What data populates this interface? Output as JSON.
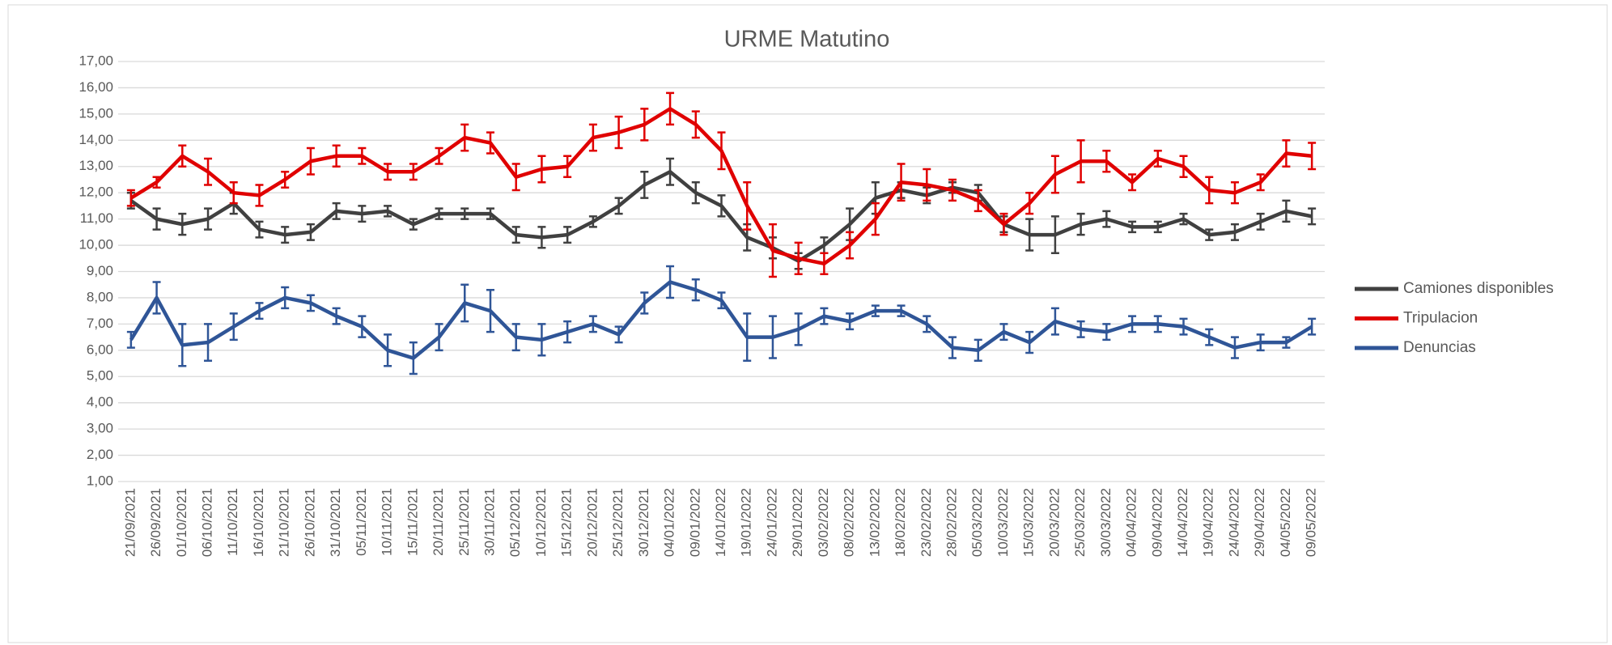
{
  "chart_data": {
    "type": "line",
    "title": "URME Matutino",
    "categories": [
      "21/09/2021",
      "26/09/2021",
      "01/10/2021",
      "06/10/2021",
      "11/10/2021",
      "16/10/2021",
      "21/10/2021",
      "26/10/2021",
      "31/10/2021",
      "05/11/2021",
      "10/11/2021",
      "15/11/2021",
      "20/11/2021",
      "25/11/2021",
      "30/11/2021",
      "05/12/2021",
      "10/12/2021",
      "15/12/2021",
      "20/12/2021",
      "25/12/2021",
      "30/12/2021",
      "04/01/2022",
      "09/01/2022",
      "14/01/2022",
      "19/01/2022",
      "24/01/2022",
      "29/01/2022",
      "03/02/2022",
      "08/02/2022",
      "13/02/2022",
      "18/02/2022",
      "23/02/2022",
      "28/02/2022",
      "05/03/2022",
      "10/03/2022",
      "15/03/2022",
      "20/03/2022",
      "25/03/2022",
      "30/03/2022",
      "04/04/2022",
      "09/04/2022",
      "14/04/2022",
      "19/04/2022",
      "24/04/2022",
      "29/04/2022",
      "04/05/2022",
      "09/05/2022"
    ],
    "series": [
      {
        "name": "Camiones disponibles",
        "color": "#404040",
        "values": [
          11.7,
          11.0,
          10.8,
          11.0,
          11.6,
          10.6,
          10.4,
          10.5,
          11.3,
          11.2,
          11.3,
          10.8,
          11.2,
          11.2,
          11.2,
          10.4,
          10.3,
          10.4,
          10.9,
          11.5,
          12.3,
          12.8,
          12.0,
          11.5,
          10.3,
          9.9,
          9.4,
          10.0,
          10.8,
          11.8,
          12.1,
          11.9,
          12.2,
          12.0,
          10.8,
          10.4,
          10.4,
          10.8,
          11.0,
          10.7,
          10.7,
          11.0,
          10.4,
          10.5,
          10.9,
          11.3,
          11.1
        ],
        "errors": [
          0.3,
          0.4,
          0.4,
          0.4,
          0.4,
          0.3,
          0.3,
          0.3,
          0.3,
          0.3,
          0.2,
          0.2,
          0.2,
          0.2,
          0.2,
          0.3,
          0.4,
          0.3,
          0.2,
          0.3,
          0.5,
          0.5,
          0.4,
          0.4,
          0.5,
          0.4,
          0.3,
          0.3,
          0.6,
          0.6,
          0.3,
          0.3,
          0.2,
          0.3,
          0.3,
          0.6,
          0.7,
          0.4,
          0.3,
          0.2,
          0.2,
          0.2,
          0.2,
          0.3,
          0.3,
          0.4,
          0.3
        ]
      },
      {
        "name": "Tripulacion",
        "color": "#e00000",
        "values": [
          11.8,
          12.4,
          13.4,
          12.8,
          12.0,
          11.9,
          12.5,
          13.2,
          13.4,
          13.4,
          12.8,
          12.8,
          13.4,
          14.1,
          13.9,
          12.6,
          12.9,
          13.0,
          14.1,
          14.3,
          14.6,
          15.2,
          14.6,
          13.6,
          11.5,
          9.8,
          9.5,
          9.3,
          10.0,
          11.0,
          12.4,
          12.3,
          12.1,
          11.7,
          10.8,
          11.6,
          12.7,
          13.2,
          13.2,
          12.4,
          13.3,
          13.0,
          12.1,
          12.0,
          12.4,
          13.5,
          13.4
        ],
        "errors": [
          0.3,
          0.2,
          0.4,
          0.5,
          0.4,
          0.4,
          0.3,
          0.5,
          0.4,
          0.3,
          0.3,
          0.3,
          0.3,
          0.5,
          0.4,
          0.5,
          0.5,
          0.4,
          0.5,
          0.6,
          0.6,
          0.6,
          0.5,
          0.7,
          0.9,
          1.0,
          0.6,
          0.4,
          0.5,
          0.6,
          0.7,
          0.6,
          0.4,
          0.4,
          0.4,
          0.4,
          0.7,
          0.8,
          0.4,
          0.3,
          0.3,
          0.4,
          0.5,
          0.4,
          0.3,
          0.5,
          0.5
        ]
      },
      {
        "name": "Denuncias",
        "color": "#2f5597",
        "values": [
          6.4,
          8.0,
          6.2,
          6.3,
          6.9,
          7.5,
          8.0,
          7.8,
          7.3,
          6.9,
          6.0,
          5.7,
          6.5,
          7.8,
          7.5,
          6.5,
          6.4,
          6.7,
          7.0,
          6.6,
          7.8,
          8.6,
          8.3,
          7.9,
          6.5,
          6.5,
          6.8,
          7.3,
          7.1,
          7.5,
          7.5,
          7.0,
          6.1,
          6.0,
          6.7,
          6.3,
          7.1,
          6.8,
          6.7,
          7.0,
          7.0,
          6.9,
          6.5,
          6.1,
          6.3,
          6.3,
          6.9
        ],
        "errors": [
          0.3,
          0.6,
          0.8,
          0.7,
          0.5,
          0.3,
          0.4,
          0.3,
          0.3,
          0.4,
          0.6,
          0.6,
          0.5,
          0.7,
          0.8,
          0.5,
          0.6,
          0.4,
          0.3,
          0.3,
          0.4,
          0.6,
          0.4,
          0.3,
          0.9,
          0.8,
          0.6,
          0.3,
          0.3,
          0.2,
          0.2,
          0.3,
          0.4,
          0.4,
          0.3,
          0.4,
          0.5,
          0.3,
          0.3,
          0.3,
          0.3,
          0.3,
          0.3,
          0.4,
          0.3,
          0.2,
          0.3
        ]
      }
    ],
    "ylim": [
      1,
      17
    ],
    "yticks": [
      {
        "value": 1,
        "label": "1,00"
      },
      {
        "value": 2,
        "label": "2,00"
      },
      {
        "value": 3,
        "label": "3,00"
      },
      {
        "value": 4,
        "label": "4,00"
      },
      {
        "value": 5,
        "label": "5,00"
      },
      {
        "value": 6,
        "label": "6,00"
      },
      {
        "value": 7,
        "label": "7,00"
      },
      {
        "value": 8,
        "label": "8,00"
      },
      {
        "value": 9,
        "label": "9,00"
      },
      {
        "value": 10,
        "label": "10,00"
      },
      {
        "value": 11,
        "label": "11,00"
      },
      {
        "value": 12,
        "label": "12,00"
      },
      {
        "value": 13,
        "label": "13,00"
      },
      {
        "value": 14,
        "label": "14,00"
      },
      {
        "value": 15,
        "label": "15,00"
      },
      {
        "value": 16,
        "label": "16,00"
      },
      {
        "value": 17,
        "label": "17,00"
      }
    ],
    "grid": true,
    "legend": "right"
  }
}
